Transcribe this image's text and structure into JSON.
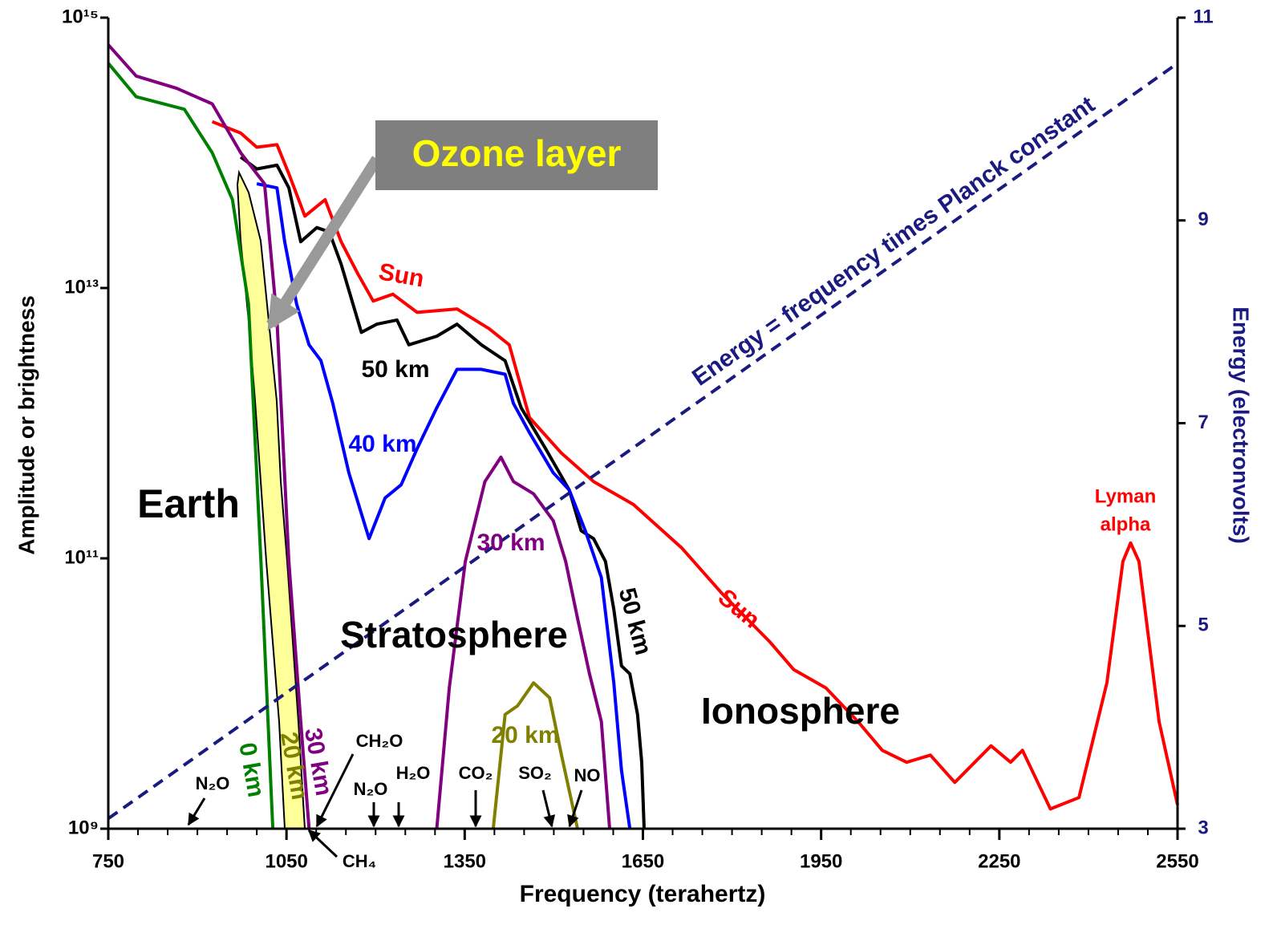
{
  "chart_data": {
    "type": "line",
    "yscale": "log",
    "xlabel": "Frequency (terahertz)",
    "ylabel": "Amplitude or brightness",
    "y2label": "Energy (electronvolts)",
    "xlim": [
      750,
      2550
    ],
    "xticks": [
      750,
      1050,
      1350,
      1650,
      1950,
      2250,
      2550
    ],
    "xminorticks": [
      800,
      850,
      900,
      950,
      1000,
      1100,
      1150,
      1200,
      1250,
      1300,
      1400,
      1450,
      1500,
      1550,
      1600,
      1700,
      1750,
      1800,
      1850,
      1900,
      2000,
      2050,
      2100,
      2150,
      2200,
      2300,
      2350,
      2400,
      2450,
      2500
    ],
    "ylim": [
      1000000000.0,
      1000000000000000.0
    ],
    "yticks": [
      {
        "value": 1000000000.0,
        "label": "10⁹"
      },
      {
        "value": 100000000000.0,
        "label": "10¹¹"
      },
      {
        "value": 10000000000000.0,
        "label": "10¹³"
      },
      {
        "value": 1000000000000000.0,
        "label": "10¹⁵"
      }
    ],
    "y2lim": [
      3,
      11
    ],
    "y2ticks": [
      3,
      5,
      7,
      9,
      11
    ],
    "y2color": "#1a1a80",
    "series": [
      {
        "name": "Sun",
        "color": "#ff0000",
        "x": [
          925,
          973,
          1000,
          1034,
          1054,
          1081,
          1115,
          1142,
          1169,
          1196,
          1229,
          1270,
          1337,
          1391,
          1425,
          1459,
          1513,
          1567,
          1634,
          1715,
          1783,
          1864,
          1904,
          1958,
          2012,
          2053,
          2094,
          2134,
          2175,
          2236,
          2269,
          2289,
          2336,
          2384,
          2431,
          2458,
          2471,
          2485,
          2519,
          2550
        ],
        "values": [
          170000000000000.0,
          140000000000000.0,
          110000000000000.0,
          115000000000000.0,
          70000000000000.0,
          34000000000000.0,
          45000000000000.0,
          22000000000000.0,
          13000000000000.0,
          8000000000000.0,
          9000000000000.0,
          6600000000000.0,
          7000000000000.0,
          5000000000000.0,
          3800000000000.0,
          1100000000000.0,
          600000000000.0,
          370000000000.0,
          250000000000.0,
          120000000000.0,
          55000000000.0,
          24000000000.0,
          15000000000.0,
          11000000000.0,
          6200000000.0,
          3800000000.0,
          3100000000.0,
          3500000000.0,
          2200000000.0,
          4100000000.0,
          3100000000.0,
          3800000000.0,
          1400000000.0,
          1700000000.0,
          12000000000.0,
          95000000000.0,
          130000000000.0,
          95000000000.0,
          6200000000.0,
          1500000000.0
        ]
      },
      {
        "name": "50 km",
        "color": "#000000",
        "x": [
          973,
          1000,
          1034,
          1054,
          1074,
          1101,
          1122,
          1142,
          1176,
          1202,
          1236,
          1256,
          1303,
          1337,
          1378,
          1418,
          1445,
          1486,
          1526,
          1546,
          1567,
          1587,
          1601,
          1614,
          1628,
          1641,
          1648,
          1652
        ],
        "values": [
          93000000000000.0,
          76000000000000.0,
          81000000000000.0,
          55000000000000.0,
          22000000000000.0,
          28000000000000.0,
          26000000000000.0,
          15000000000000.0,
          4700000000000.0,
          5400000000000.0,
          5800000000000.0,
          3800000000000.0,
          4400000000000.0,
          5400000000000.0,
          3800000000000.0,
          2900000000000.0,
          1300000000000.0,
          650000000000.0,
          320000000000.0,
          160000000000.0,
          140000000000.0,
          95000000000.0,
          42000000000.0,
          16000000000.0,
          14000000000.0,
          7000000000.0,
          3100000000.0,
          1000000000.0
        ]
      },
      {
        "name": "40 km",
        "color": "#0000ff",
        "x": [
          1000,
          1034,
          1047,
          1067,
          1088,
          1108,
          1128,
          1155,
          1189,
          1216,
          1243,
          1270,
          1303,
          1337,
          1378,
          1418,
          1432,
          1459,
          1499,
          1526,
          1553,
          1580,
          1601,
          1614,
          1628
        ],
        "values": [
          59000000000000.0,
          55000000000000.0,
          22000000000000.0,
          7600000000000.0,
          3800000000000.0,
          2900000000000.0,
          1400000000000.0,
          430000000000.0,
          140000000000.0,
          280000000000.0,
          350000000000.0,
          650000000000.0,
          1300000000000.0,
          2500000000000.0,
          2500000000000.0,
          2300000000000.0,
          1400000000000.0,
          850000000000.0,
          430000000000.0,
          320000000000.0,
          160000000000.0,
          72000000000.0,
          12000000000.0,
          2700000000.0,
          1000000000.0
        ]
      },
      {
        "name": "30 km",
        "color": "#800080",
        "x": [
          750,
          797,
          865,
          925,
          973,
          1013,
          1034,
          1054,
          1074,
          1088,
          1200,
          1303,
          1324,
          1351,
          1384,
          1411,
          1432,
          1466,
          1499,
          1520,
          1540,
          1560,
          1580,
          1594
        ],
        "values": [
          630000000000000.0,
          370000000000000.0,
          300000000000000.0,
          230000000000000.0,
          100000000000000.0,
          59000000000000.0,
          5800000000000.0,
          95000000000.0,
          6200000000.0,
          1000000000.0,
          null,
          1000000000.0,
          11000000000.0,
          95000000000.0,
          370000000000.0,
          560000000000.0,
          370000000000.0,
          300000000000.0,
          190000000000.0,
          95000000000.0,
          36000000000.0,
          14000000000.0,
          6200000000.0,
          1000000000.0
        ]
      },
      {
        "name": "20 km",
        "color": "#808000",
        "x": [
          1398,
          1418,
          1439,
          1466,
          1493,
          1513,
          1540
        ],
        "values": [
          1000000000.0,
          7000000000.0,
          8100000000.0,
          12000000000.0,
          9300000000.0,
          3500000000.0,
          1000000000.0
        ]
      },
      {
        "name": "0 km",
        "color": "#008000",
        "x": [
          750,
          797,
          878,
          925,
          959,
          986,
          1007,
          1027
        ],
        "values": [
          460000000000000.0,
          260000000000000.0,
          210000000000000.0,
          100000000000000.0,
          45000000000000.0,
          7600000000000.0,
          95000000000.0,
          1000000000.0
        ]
      },
      {
        "name": "Energy = frequency times Planck constant",
        "color": "#1a1a80",
        "dash": true,
        "axis": "y2",
        "x": [
          750,
          2550
        ],
        "values": [
          3.1,
          10.55
        ]
      }
    ],
    "annotations": [
      "Earth",
      "Stratosphere",
      "Ionosphere",
      "Ozone layer",
      "Lyman",
      "alpha",
      "N₂O",
      "CH₂O",
      "N₂O",
      "H₂O",
      "CO₂",
      "SO₂",
      "NO",
      "CH₄"
    ]
  }
}
